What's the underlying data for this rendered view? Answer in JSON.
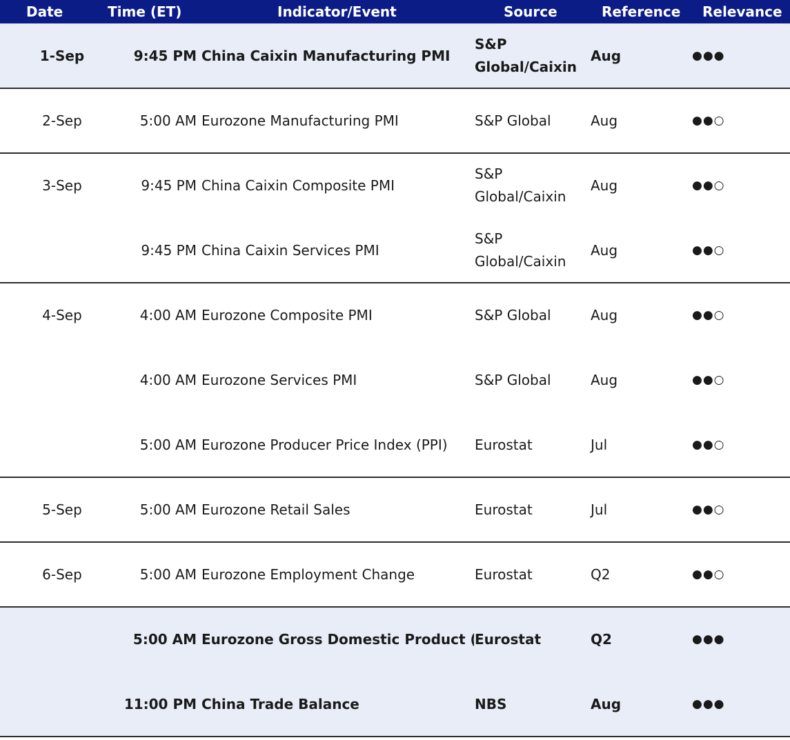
{
  "header": {
    "date": "Date",
    "time": "Time (ET)",
    "event": "Indicator/Event",
    "source": "Source",
    "reference": "Reference",
    "relevance": "Relevance"
  },
  "rows": [
    {
      "date": "1-Sep",
      "time": "9:45 PM",
      "event": "China Caixin Manufacturing PMI",
      "source": "S&P Global/Caixin",
      "reference": "Aug",
      "relevance": "●●●",
      "highlight": true
    },
    {
      "date": "2-Sep",
      "time": "5:00 AM",
      "event": "Eurozone Manufacturing PMI",
      "source": "S&P Global",
      "reference": "Aug",
      "relevance": "●●○",
      "highlight": false
    },
    {
      "date": "3-Sep",
      "time": "9:45 PM",
      "event": "China Caixin Composite PMI",
      "source": "S&P Global/Caixin",
      "reference": "Aug",
      "relevance": "●●○",
      "highlight": false
    },
    {
      "date": "",
      "time": "9:45 PM",
      "event": "China Caixin Services PMI",
      "source": "S&P Global/Caixin",
      "reference": "Aug",
      "relevance": "●●○",
      "highlight": false
    },
    {
      "date": "4-Sep",
      "time": "4:00 AM",
      "event": "Eurozone Composite PMI",
      "source": "S&P Global",
      "reference": "Aug",
      "relevance": "●●○",
      "highlight": false
    },
    {
      "date": "",
      "time": "4:00 AM",
      "event": "Eurozone Services PMI",
      "source": "S&P Global",
      "reference": "Aug",
      "relevance": "●●○",
      "highlight": false
    },
    {
      "date": "",
      "time": "5:00 AM",
      "event": "Eurozone Producer Price Index (PPI)",
      "source": "Eurostat",
      "reference": "Jul",
      "relevance": "●●○",
      "highlight": false
    },
    {
      "date": "5-Sep",
      "time": "5:00 AM",
      "event": "Eurozone Retail Sales",
      "source": "Eurostat",
      "reference": "Jul",
      "relevance": "●●○",
      "highlight": false
    },
    {
      "date": "6-Sep",
      "time": "5:00 AM",
      "event": "Eurozone Employment Change",
      "source": "Eurostat",
      "reference": "Q2",
      "relevance": "●●○",
      "highlight": false
    },
    {
      "date": "",
      "time": "5:00 AM",
      "event": "Eurozone Gross Domestic Product (G",
      "source": "Eurostat",
      "reference": "Q2",
      "relevance": "●●●",
      "highlight": true
    },
    {
      "date": "",
      "time": "11:00 PM",
      "event": "China Trade Balance",
      "source": "NBS",
      "reference": "Aug",
      "relevance": "●●●",
      "highlight": true
    }
  ],
  "colors": {
    "header_bg": "#0b1c86",
    "highlight_bg": "#e8edf8",
    "rule": "#2b2b2b"
  }
}
